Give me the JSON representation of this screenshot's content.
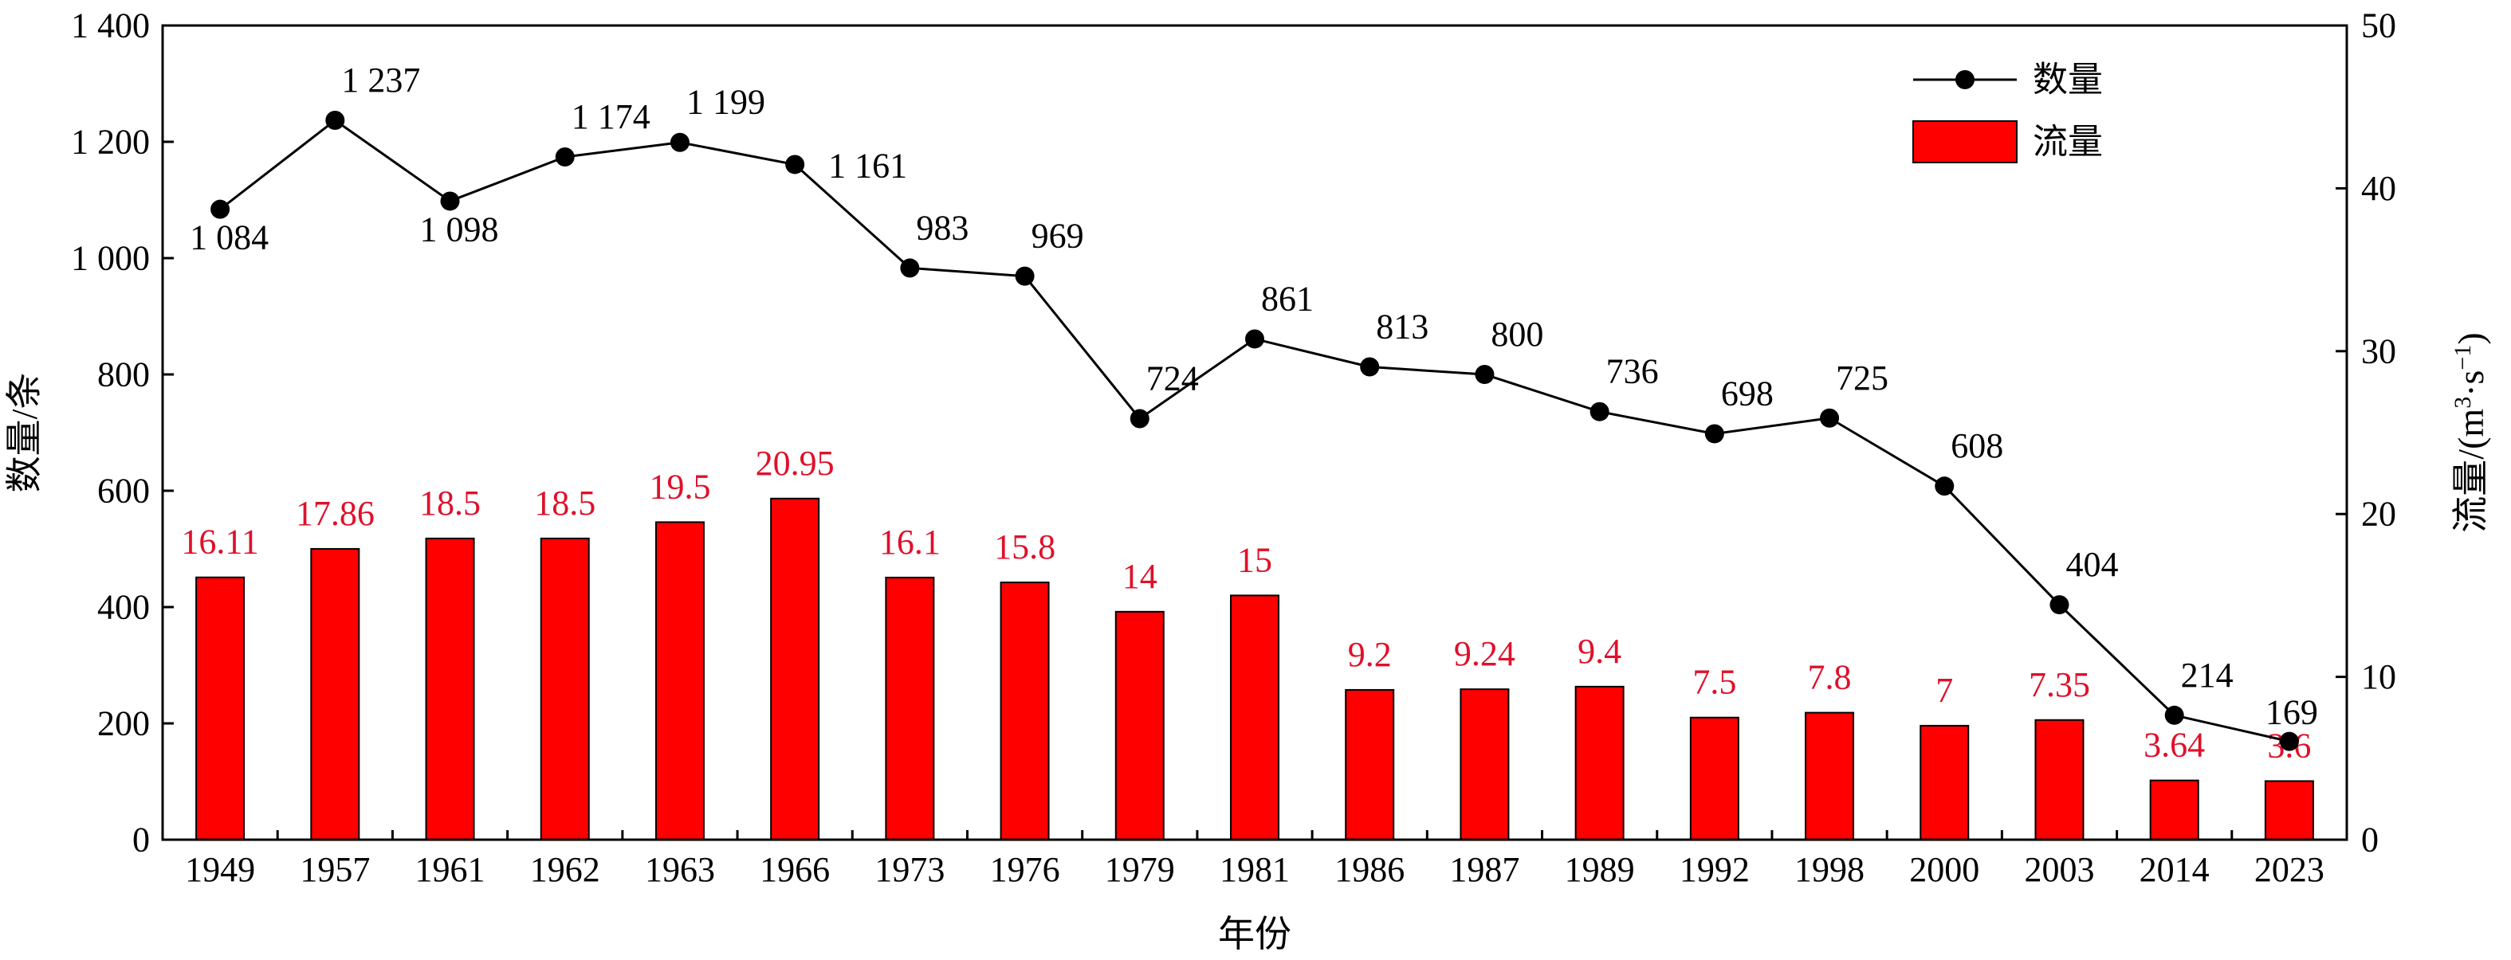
{
  "chart_data": {
    "type": "bar",
    "categories": [
      "1949",
      "1957",
      "1961",
      "1962",
      "1963",
      "1966",
      "1973",
      "1976",
      "1979",
      "1981",
      "1986",
      "1987",
      "1989",
      "1992",
      "1998",
      "2000",
      "2003",
      "2014",
      "2023"
    ],
    "series": [
      {
        "name": "数量",
        "type": "line",
        "axis": "left",
        "values": [
          1084,
          1237,
          1098,
          1174,
          1199,
          1161,
          983,
          969,
          724,
          861,
          813,
          800,
          736,
          698,
          725,
          608,
          404,
          214,
          169
        ],
        "labels": [
          "1 084",
          "1 237",
          "1 098",
          "1 174",
          "1 199",
          "1 161",
          "983",
          "969",
          "724",
          "861",
          "813",
          "800",
          "736",
          "698",
          "725",
          "608",
          "404",
          "214",
          "169"
        ],
        "color": "#000000"
      },
      {
        "name": "流量",
        "type": "bar",
        "axis": "right",
        "values": [
          16.11,
          17.86,
          18.5,
          18.5,
          19.5,
          20.95,
          16.1,
          15.8,
          14,
          15,
          9.2,
          9.24,
          9.4,
          7.5,
          7.8,
          7,
          7.35,
          3.64,
          3.6
        ],
        "labels": [
          "16.11",
          "17.86",
          "18.5",
          "18.5",
          "19.5",
          "20.95",
          "16.1",
          "15.8",
          "14",
          "15",
          "9.2",
          "9.24",
          "9.4",
          "7.5",
          "7.8",
          "7",
          "7.35",
          "3.64",
          "3.6"
        ],
        "color": "#ff0000",
        "label_color": "#e0102a"
      }
    ],
    "xlabel": "年份",
    "ylabel_left": "数量/条",
    "ylabel_right_main": "流量/(m",
    "ylabel_right_sup1": "3",
    "ylabel_right_mid": "·s",
    "ylabel_right_sup2": "−1",
    "ylabel_right_end": ")",
    "ylim_left": [
      0,
      1400
    ],
    "ylim_right": [
      0,
      50
    ],
    "yticks_left": [
      0,
      200,
      400,
      600,
      800,
      1000,
      1200,
      1400
    ],
    "yticks_left_labels": [
      "0",
      "200",
      "400",
      "600",
      "800",
      "1 000",
      "1 200",
      "1 400"
    ],
    "yticks_right": [
      0,
      10,
      20,
      30,
      40,
      50
    ],
    "yticks_right_labels": [
      "0",
      "10",
      "20",
      "30",
      "40",
      "50"
    ],
    "legend": {
      "placement": "top-right",
      "entries": [
        {
          "label": "数量",
          "kind": "line-marker"
        },
        {
          "label": "流量",
          "kind": "bar"
        }
      ]
    },
    "grid": false
  }
}
